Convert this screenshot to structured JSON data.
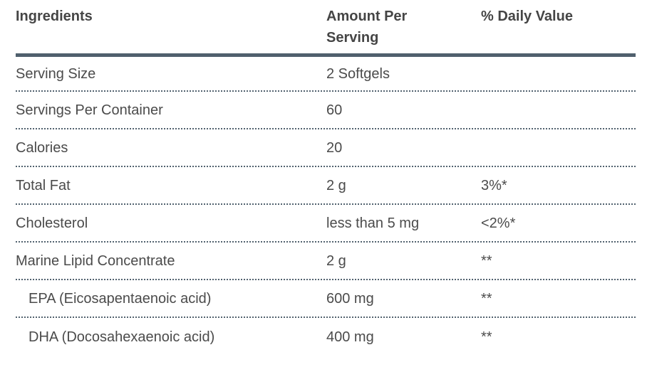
{
  "table": {
    "columns": [
      "Ingredients",
      "Amount Per Serving",
      "% Daily Value"
    ],
    "rows": [
      {
        "ingredient": "Serving Size",
        "amount": "2 Softgels",
        "daily_value": "",
        "indent": false
      },
      {
        "ingredient": "Servings Per Container",
        "amount": "60",
        "daily_value": "",
        "indent": false
      },
      {
        "ingredient": "Calories",
        "amount": "20",
        "daily_value": "",
        "indent": false
      },
      {
        "ingredient": "Total Fat",
        "amount": "2 g",
        "daily_value": "3%*",
        "indent": false
      },
      {
        "ingredient": "Cholesterol",
        "amount": "less than 5 mg",
        "daily_value": "<2%*",
        "indent": false
      },
      {
        "ingredient": "Marine Lipid Concentrate",
        "amount": "2 g",
        "daily_value": "**",
        "indent": false
      },
      {
        "ingredient": "EPA (Eicosapentaenoic acid)",
        "amount": "600 mg",
        "daily_value": "**",
        "indent": true
      },
      {
        "ingredient": "DHA (Docosahexaenoic acid)",
        "amount": "400 mg",
        "daily_value": "**",
        "indent": true
      }
    ],
    "colors": {
      "text": "#4b4b4b",
      "header_text": "#454545",
      "rule": "#50606d",
      "dotted_separator": "#52626f",
      "background": "#ffffff"
    }
  }
}
